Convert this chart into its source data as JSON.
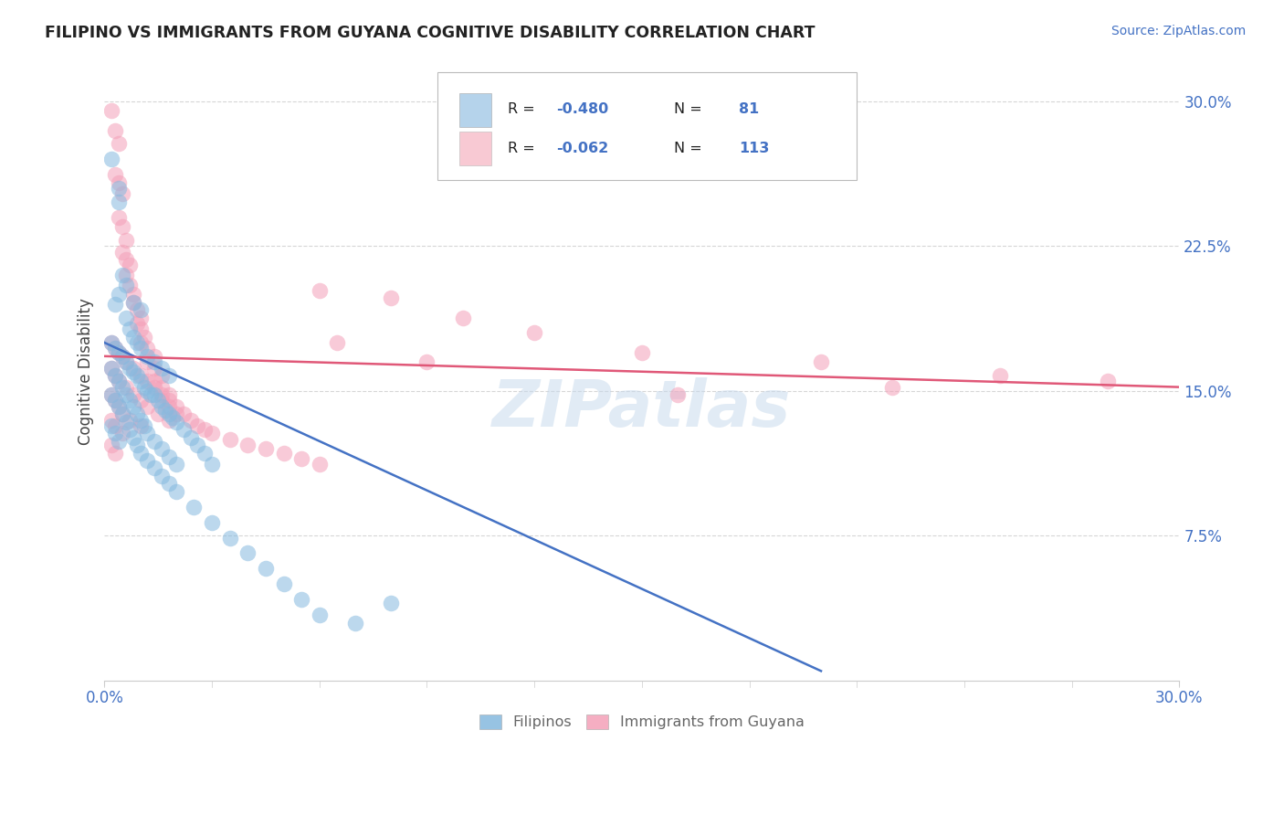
{
  "title": "FILIPINO VS IMMIGRANTS FROM GUYANA COGNITIVE DISABILITY CORRELATION CHART",
  "source": "Source: ZipAtlas.com",
  "ylabel": "Cognitive Disability",
  "x_range": [
    0.0,
    0.3
  ],
  "y_range": [
    0.0,
    0.32
  ],
  "yticks": [
    0.075,
    0.15,
    0.225,
    0.3
  ],
  "ytick_labels": [
    "7.5%",
    "15.0%",
    "22.5%",
    "30.0%"
  ],
  "xticks": [
    0.0,
    0.3
  ],
  "xtick_labels": [
    "0.0%",
    "30.0%"
  ],
  "watermark": "ZIPatlas",
  "filipinos_color": "#85b9df",
  "guyana_color": "#f4a0b8",
  "trend_blue_color": "#4472c4",
  "trend_pink_color": "#e05878",
  "background_color": "#ffffff",
  "legend_box_color": "#f0f0f0",
  "legend_blue_sq": "#a8cce8",
  "legend_pink_sq": "#f7c0cc",
  "legend_text_color": "#222222",
  "legend_value_color": "#4472c4",
  "tick_color": "#4472c4",
  "ylabel_color": "#444444",
  "title_color": "#222222",
  "source_color": "#4472c4",
  "bottom_label_color": "#666666",
  "grid_color": "#cccccc",
  "blue_line_x0": 0.0,
  "blue_line_y0": 0.175,
  "blue_line_x1": 0.2,
  "blue_line_y1": 0.005,
  "pink_line_x0": 0.0,
  "pink_line_y0": 0.168,
  "pink_line_x1": 0.3,
  "pink_line_y1": 0.152,
  "filipinos_data": [
    [
      0.002,
      0.27
    ],
    [
      0.004,
      0.248
    ],
    [
      0.004,
      0.255
    ],
    [
      0.003,
      0.195
    ],
    [
      0.004,
      0.2
    ],
    [
      0.005,
      0.21
    ],
    [
      0.006,
      0.205
    ],
    [
      0.008,
      0.196
    ],
    [
      0.01,
      0.192
    ],
    [
      0.006,
      0.188
    ],
    [
      0.007,
      0.182
    ],
    [
      0.008,
      0.178
    ],
    [
      0.009,
      0.175
    ],
    [
      0.01,
      0.172
    ],
    [
      0.012,
      0.168
    ],
    [
      0.014,
      0.165
    ],
    [
      0.016,
      0.162
    ],
    [
      0.018,
      0.158
    ],
    [
      0.002,
      0.175
    ],
    [
      0.003,
      0.172
    ],
    [
      0.004,
      0.17
    ],
    [
      0.005,
      0.168
    ],
    [
      0.006,
      0.165
    ],
    [
      0.007,
      0.162
    ],
    [
      0.008,
      0.16
    ],
    [
      0.009,
      0.158
    ],
    [
      0.01,
      0.155
    ],
    [
      0.011,
      0.152
    ],
    [
      0.012,
      0.15
    ],
    [
      0.013,
      0.148
    ],
    [
      0.014,
      0.148
    ],
    [
      0.015,
      0.145
    ],
    [
      0.016,
      0.142
    ],
    [
      0.017,
      0.14
    ],
    [
      0.018,
      0.138
    ],
    [
      0.019,
      0.136
    ],
    [
      0.02,
      0.134
    ],
    [
      0.022,
      0.13
    ],
    [
      0.024,
      0.126
    ],
    [
      0.026,
      0.122
    ],
    [
      0.028,
      0.118
    ],
    [
      0.03,
      0.112
    ],
    [
      0.002,
      0.162
    ],
    [
      0.003,
      0.158
    ],
    [
      0.004,
      0.155
    ],
    [
      0.005,
      0.152
    ],
    [
      0.006,
      0.148
    ],
    [
      0.007,
      0.145
    ],
    [
      0.008,
      0.142
    ],
    [
      0.009,
      0.138
    ],
    [
      0.01,
      0.135
    ],
    [
      0.011,
      0.132
    ],
    [
      0.012,
      0.128
    ],
    [
      0.014,
      0.124
    ],
    [
      0.016,
      0.12
    ],
    [
      0.018,
      0.116
    ],
    [
      0.02,
      0.112
    ],
    [
      0.002,
      0.148
    ],
    [
      0.003,
      0.145
    ],
    [
      0.004,
      0.142
    ],
    [
      0.005,
      0.138
    ],
    [
      0.006,
      0.134
    ],
    [
      0.007,
      0.13
    ],
    [
      0.008,
      0.126
    ],
    [
      0.009,
      0.122
    ],
    [
      0.01,
      0.118
    ],
    [
      0.012,
      0.114
    ],
    [
      0.014,
      0.11
    ],
    [
      0.016,
      0.106
    ],
    [
      0.018,
      0.102
    ],
    [
      0.02,
      0.098
    ],
    [
      0.025,
      0.09
    ],
    [
      0.03,
      0.082
    ],
    [
      0.035,
      0.074
    ],
    [
      0.04,
      0.066
    ],
    [
      0.045,
      0.058
    ],
    [
      0.05,
      0.05
    ],
    [
      0.055,
      0.042
    ],
    [
      0.06,
      0.034
    ],
    [
      0.07,
      0.03
    ],
    [
      0.08,
      0.04
    ],
    [
      0.002,
      0.132
    ],
    [
      0.003,
      0.128
    ],
    [
      0.004,
      0.124
    ]
  ],
  "guyana_data": [
    [
      0.002,
      0.295
    ],
    [
      0.003,
      0.285
    ],
    [
      0.004,
      0.278
    ],
    [
      0.003,
      0.262
    ],
    [
      0.004,
      0.258
    ],
    [
      0.005,
      0.252
    ],
    [
      0.004,
      0.24
    ],
    [
      0.005,
      0.235
    ],
    [
      0.006,
      0.228
    ],
    [
      0.005,
      0.222
    ],
    [
      0.006,
      0.218
    ],
    [
      0.007,
      0.215
    ],
    [
      0.006,
      0.21
    ],
    [
      0.007,
      0.205
    ],
    [
      0.008,
      0.2
    ],
    [
      0.008,
      0.196
    ],
    [
      0.009,
      0.192
    ],
    [
      0.01,
      0.188
    ],
    [
      0.009,
      0.185
    ],
    [
      0.01,
      0.182
    ],
    [
      0.011,
      0.178
    ],
    [
      0.01,
      0.175
    ],
    [
      0.012,
      0.172
    ],
    [
      0.014,
      0.168
    ],
    [
      0.012,
      0.165
    ],
    [
      0.014,
      0.162
    ],
    [
      0.016,
      0.158
    ],
    [
      0.014,
      0.155
    ],
    [
      0.016,
      0.152
    ],
    [
      0.018,
      0.148
    ],
    [
      0.016,
      0.145
    ],
    [
      0.018,
      0.142
    ],
    [
      0.02,
      0.138
    ],
    [
      0.002,
      0.175
    ],
    [
      0.003,
      0.172
    ],
    [
      0.004,
      0.17
    ],
    [
      0.005,
      0.168
    ],
    [
      0.006,
      0.165
    ],
    [
      0.008,
      0.162
    ],
    [
      0.01,
      0.158
    ],
    [
      0.012,
      0.155
    ],
    [
      0.014,
      0.152
    ],
    [
      0.016,
      0.148
    ],
    [
      0.018,
      0.145
    ],
    [
      0.02,
      0.142
    ],
    [
      0.022,
      0.138
    ],
    [
      0.024,
      0.135
    ],
    [
      0.026,
      0.132
    ],
    [
      0.028,
      0.13
    ],
    [
      0.03,
      0.128
    ],
    [
      0.035,
      0.125
    ],
    [
      0.04,
      0.122
    ],
    [
      0.045,
      0.12
    ],
    [
      0.05,
      0.118
    ],
    [
      0.055,
      0.115
    ],
    [
      0.06,
      0.112
    ],
    [
      0.002,
      0.162
    ],
    [
      0.003,
      0.158
    ],
    [
      0.004,
      0.155
    ],
    [
      0.006,
      0.152
    ],
    [
      0.008,
      0.148
    ],
    [
      0.01,
      0.145
    ],
    [
      0.012,
      0.142
    ],
    [
      0.015,
      0.138
    ],
    [
      0.018,
      0.135
    ],
    [
      0.002,
      0.148
    ],
    [
      0.003,
      0.145
    ],
    [
      0.004,
      0.142
    ],
    [
      0.005,
      0.138
    ],
    [
      0.007,
      0.135
    ],
    [
      0.01,
      0.132
    ],
    [
      0.002,
      0.135
    ],
    [
      0.003,
      0.132
    ],
    [
      0.005,
      0.128
    ],
    [
      0.002,
      0.122
    ],
    [
      0.003,
      0.118
    ],
    [
      0.06,
      0.202
    ],
    [
      0.08,
      0.198
    ],
    [
      0.1,
      0.188
    ],
    [
      0.065,
      0.175
    ],
    [
      0.09,
      0.165
    ],
    [
      0.12,
      0.18
    ],
    [
      0.15,
      0.17
    ],
    [
      0.2,
      0.165
    ],
    [
      0.25,
      0.158
    ],
    [
      0.28,
      0.155
    ],
    [
      0.16,
      0.148
    ],
    [
      0.22,
      0.152
    ]
  ]
}
